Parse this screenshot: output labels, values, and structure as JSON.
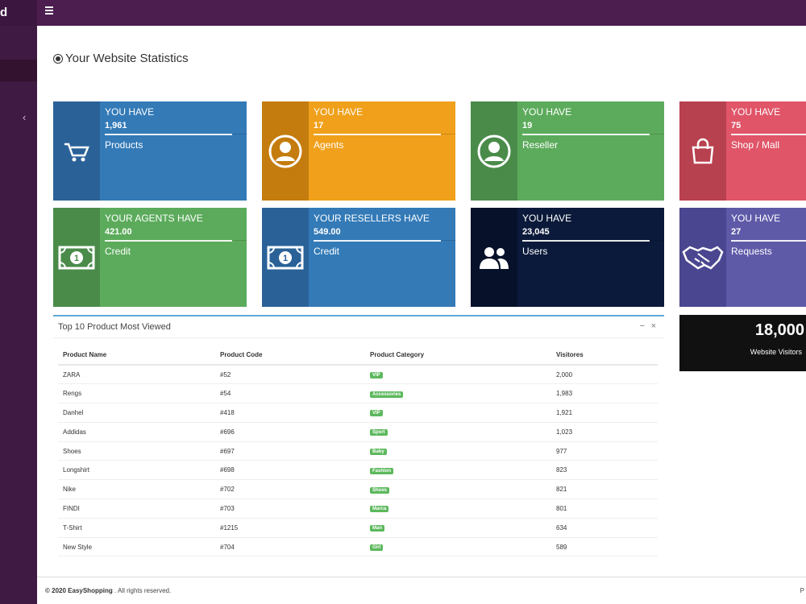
{
  "app": {
    "brand_fragment": "d"
  },
  "header": {
    "title": "Your Website Statistics"
  },
  "colors": {
    "sidebar": "#3f1a42",
    "topbar": "#4b1e4f",
    "blue": "#337ab7",
    "orange": "#f0a01b",
    "green": "#5cab5c",
    "red": "#e05568",
    "navy": "#0b1a3a",
    "purple": "#5f5aa8"
  },
  "tiles": [
    {
      "pre": "YOU HAVE",
      "value": "1,961",
      "label": "Products",
      "icon": "cart-icon"
    },
    {
      "pre": "YOU HAVE",
      "value": "17",
      "label": "Agents",
      "icon": "user-circle-icon"
    },
    {
      "pre": "YOU HAVE",
      "value": "19",
      "label": "Reseller",
      "icon": "user-circle-icon"
    },
    {
      "pre": "YOU HAVE",
      "value": "75",
      "label": "Shop / Mall",
      "icon": "shopping-bag-icon"
    },
    {
      "pre": "YOUR AGENTS HAVE",
      "value": "421.00",
      "label": "Credit",
      "icon": "money-icon"
    },
    {
      "pre": "YOUR RESELLERS HAVE",
      "value": "549.00",
      "label": "Credit",
      "icon": "money-icon"
    },
    {
      "pre": "YOU HAVE",
      "value": "23,045",
      "label": "Users",
      "icon": "users-icon"
    },
    {
      "pre": "YOU HAVE",
      "value": "27",
      "label": "Requests",
      "icon": "handshake-icon"
    }
  ],
  "panel": {
    "title": "Top 10 Product Most Viewed",
    "minimize": "−",
    "close": "×",
    "columns": [
      "Product Name",
      "Product Code",
      "Product Category",
      "Visitores"
    ],
    "rows": [
      [
        "ZARA",
        "#52",
        "VIP",
        "2,000"
      ],
      [
        "Rengs",
        "#54",
        "Accessories",
        "1,983"
      ],
      [
        "Danhel",
        "#418",
        "VIP",
        "1,921"
      ],
      [
        "Addidas",
        "#696",
        "Sport",
        "1,023"
      ],
      [
        "Shoes",
        "#697",
        "Baby",
        "977"
      ],
      [
        "Longshirt",
        "#698",
        "Fashion",
        "823"
      ],
      [
        "Nike",
        "#702",
        "Shoes",
        "821"
      ],
      [
        "FINDI",
        "#703",
        "Marca",
        "801"
      ],
      [
        "T-Shirt",
        "#1215",
        "Man",
        "634"
      ],
      [
        "New Style",
        "#704",
        "Girl",
        "589"
      ]
    ]
  },
  "visitors": {
    "value": "18,000",
    "label": "Website Visitors"
  },
  "footer": {
    "prefix": "© 2020",
    "brand": "EasyShopping",
    "suffix": ". All rights reserved.",
    "right": "P"
  }
}
